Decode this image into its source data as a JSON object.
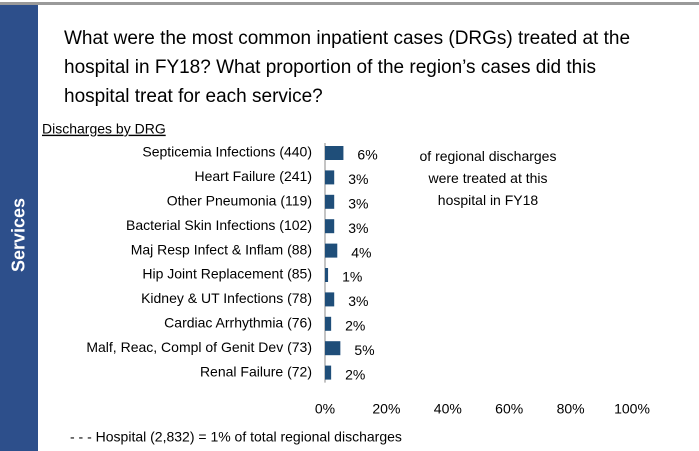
{
  "sidebar": "Services",
  "chart_data": {
    "type": "bar",
    "orientation": "horizontal",
    "title": "What were the most common inpatient cases (DRGs) treated at the hospital in FY18? What proportion of the region’s cases did this hospital treat for each service?",
    "subtitle": "Discharges by DRG",
    "annotation": "of regional discharges were treated at this hospital in FY18",
    "footnote": "- - -  Hospital  (2,832) = 1%  of total regional  discharges",
    "categories": [
      "Septicemia Infections (440)",
      "Heart Failure (241)",
      "Other Pneumonia (119)",
      "Bacterial Skin Infections (102)",
      "Maj Resp Infect & Inflam (88)",
      "Hip Joint Replacement (85)",
      "Kidney & UT Infections (78)",
      "Cardiac Arrhythmia  (76)",
      "Malf, Reac, Compl of Genit Dev (73)",
      "Renal Failure (72)"
    ],
    "values": [
      6,
      3,
      3,
      3,
      4,
      1,
      3,
      2,
      5,
      2
    ],
    "value_labels": [
      "6%",
      "3%",
      "3%",
      "3%",
      "4%",
      "1%",
      "3%",
      "2%",
      "5%",
      "2%"
    ],
    "color": "#1f4e79",
    "xlim": [
      0,
      100
    ],
    "xticks": [
      {
        "value": 0,
        "label": "0%"
      },
      {
        "value": 20,
        "label": "20%"
      },
      {
        "value": 40,
        "label": "40%"
      },
      {
        "value": 60,
        "label": "60%"
      },
      {
        "value": 80,
        "label": "80%"
      },
      {
        "value": 100,
        "label": "100%"
      }
    ]
  }
}
